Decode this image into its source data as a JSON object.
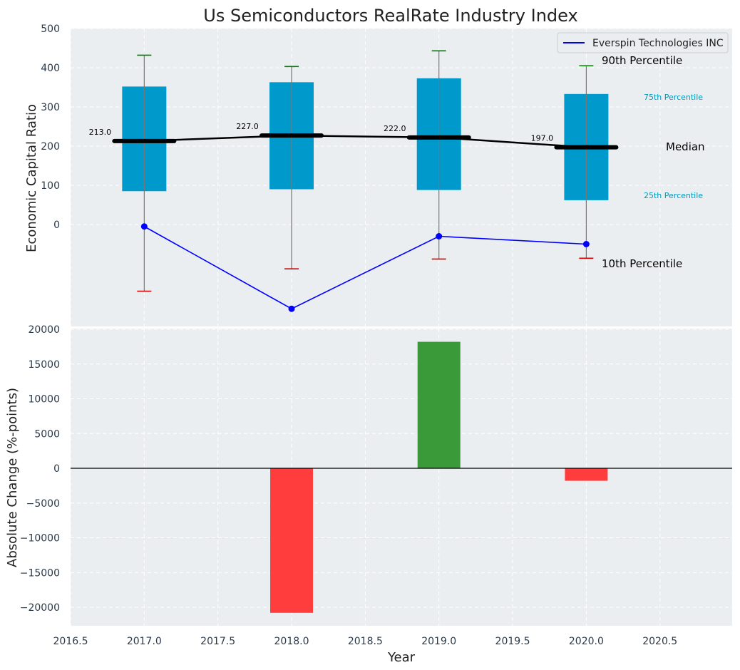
{
  "chart_data": [
    {
      "type": "box",
      "title": "Us Semiconductors RealRate Industry Index",
      "ylabel": "Economic Capital Ratio",
      "ylim": [
        -270,
        500
      ],
      "yticks": [
        0,
        100,
        200,
        300,
        400,
        500
      ],
      "grid": true,
      "legend_position": "top-right",
      "legend": [
        {
          "label": "Everspin Technologies INC",
          "color": "#0000ff"
        }
      ],
      "x": [
        2017,
        2018,
        2019,
        2020
      ],
      "boxes": [
        {
          "p10": -170,
          "p25": 85,
          "median": 213,
          "p75": 352,
          "p90": 432
        },
        {
          "p10": -113,
          "p25": 90,
          "median": 227,
          "p75": 363,
          "p90": 403
        },
        {
          "p10": -88,
          "p25": 88,
          "median": 222,
          "p75": 373,
          "p90": 443
        },
        {
          "p10": -86,
          "p25": 62,
          "median": 197,
          "p75": 333,
          "p90": 405
        }
      ],
      "median_labels": [
        "213.0",
        "227.0",
        "222.0",
        "197.0"
      ],
      "company_series": {
        "name": "Everspin Technologies INC",
        "values": [
          -5,
          -215,
          -30,
          -50
        ]
      },
      "annotations": {
        "p90": "90th Percentile",
        "p75": "75th Percentile",
        "median": "Median",
        "p25": "25th Percentile",
        "p10": "10th Percentile"
      },
      "colors": {
        "box": "#0099cc",
        "median": "#000000",
        "whisker_top": "#008000",
        "whisker_bottom": "#dd0000",
        "company": "#0000ff",
        "pct_label": "#0099bb"
      }
    },
    {
      "type": "bar",
      "ylabel": "Absolute Change (%-points)",
      "xlabel": "Year",
      "ylim": [
        -22500,
        20000
      ],
      "yticks": [
        -20000,
        -15000,
        -10000,
        -5000,
        0,
        5000,
        10000,
        15000,
        20000
      ],
      "xlim": [
        2016.5,
        2020.99
      ],
      "xticks": [
        "2016.5",
        "2017.0",
        "2017.5",
        "2018.0",
        "2018.5",
        "2019.0",
        "2019.5",
        "2020.0",
        "2020.5"
      ],
      "grid": true,
      "x": [
        2018,
        2019,
        2020
      ],
      "values": [
        -20800,
        18200,
        -1800
      ],
      "colors": {
        "positive": "#3a9a3a",
        "negative": "#ff3d3d"
      }
    }
  ]
}
